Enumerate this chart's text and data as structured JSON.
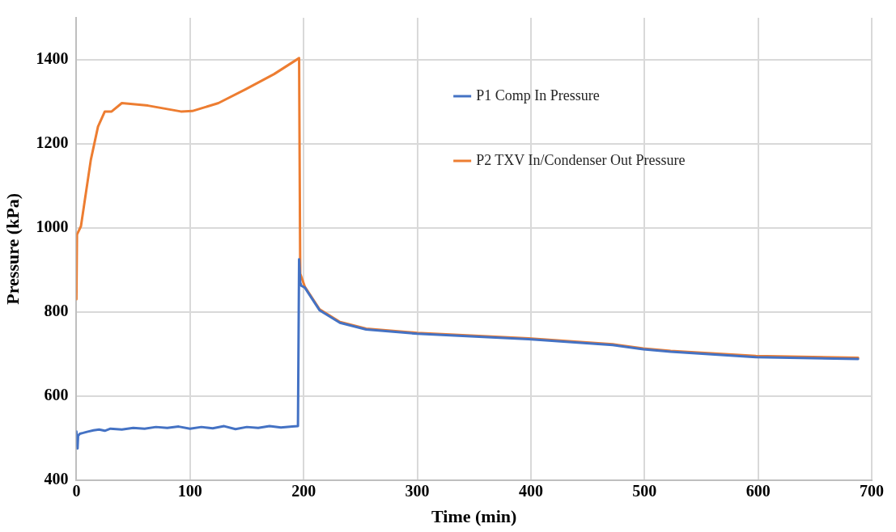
{
  "chart_data": {
    "type": "line",
    "xlabel": "Time (min)",
    "ylabel": "Pressure (kPa)",
    "xlim": [
      0,
      700
    ],
    "xticks": [
      0,
      100,
      200,
      300,
      400,
      500,
      600,
      700
    ],
    "ylim": [
      400,
      1500
    ],
    "yticks": [
      400,
      600,
      800,
      1000,
      1200,
      1400
    ],
    "grid": true,
    "legend": "top right",
    "marker": "none",
    "line_style": "solid",
    "series": [
      {
        "name": "P1 Comp In Pressure",
        "color": "#4472c4",
        "x": [
          0,
          0.5,
          1,
          1.5,
          3,
          6,
          10,
          15,
          20,
          25,
          30,
          40,
          50,
          60,
          70,
          80,
          90,
          100,
          110,
          120,
          130,
          140,
          150,
          160,
          170,
          180,
          190,
          195,
          196,
          197,
          198,
          201,
          214,
          232,
          255,
          300,
          398,
          472,
          499,
          523,
          598,
          688
        ],
        "values": [
          515,
          490,
          475,
          505,
          510,
          512,
          515,
          518,
          520,
          517,
          522,
          520,
          524,
          522,
          526,
          524,
          527,
          522,
          526,
          523,
          528,
          521,
          526,
          524,
          528,
          525,
          527,
          528,
          925,
          870,
          862,
          858,
          804,
          774,
          758,
          748,
          735,
          721,
          711,
          705,
          692,
          688
        ]
      },
      {
        "name": "P2 TXV In/Condenser Out Pressure",
        "color": "#ed7d31",
        "x": [
          0,
          0.5,
          4,
          12.7,
          19,
          25,
          31,
          40,
          63,
          92,
          102,
          125,
          149,
          174,
          196,
          197,
          201,
          214,
          232,
          255,
          300,
          398,
          472,
          499,
          523,
          598,
          688
        ],
        "values": [
          830,
          984,
          1004,
          1162,
          1241,
          1277,
          1277,
          1297,
          1291,
          1277,
          1278,
          1297,
          1330,
          1366,
          1404,
          891,
          860,
          806,
          776,
          760,
          750,
          737,
          723,
          713,
          707,
          695,
          691
        ]
      }
    ]
  }
}
